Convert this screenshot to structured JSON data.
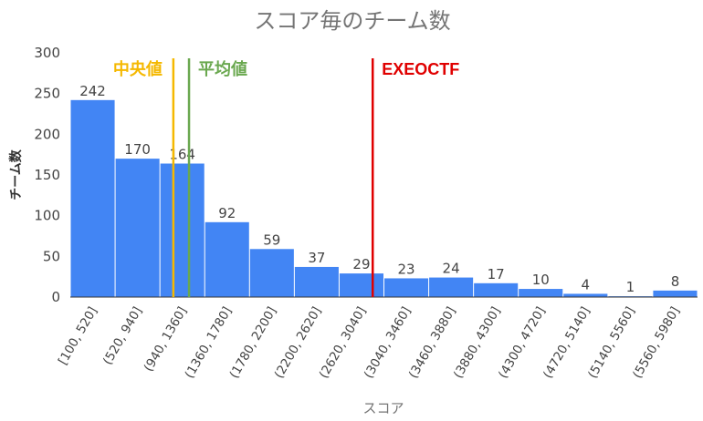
{
  "chart_data": {
    "type": "bar",
    "title": "スコア毎のチーム数",
    "xlabel": "スコア",
    "ylabel": "チーム数",
    "ylim": [
      0,
      300
    ],
    "yticks": [
      0,
      50,
      100,
      150,
      200,
      250,
      300
    ],
    "categories": [
      "[100, 520]",
      "(520, 940]",
      "(940, 1360]",
      "(1360, 1780]",
      "(1780, 2200]",
      "(2200, 2620]",
      "(2620, 3040]",
      "(3040, 3460]",
      "(3460, 3880]",
      "(3880, 4300]",
      "(4300, 4720]",
      "(4720, 5140]",
      "(5140, 5560]",
      "(5560, 5980]"
    ],
    "values": [
      242,
      170,
      164,
      92,
      59,
      37,
      29,
      23,
      24,
      17,
      10,
      4,
      1,
      8
    ],
    "bar_color": "#4285f4",
    "grid": false,
    "annotations": [
      {
        "label": "中央値",
        "x_index": 2.3,
        "color": "#f5b800"
      },
      {
        "label": "平均値",
        "x_index": 2.65,
        "color": "#6aa84f"
      },
      {
        "label": "EXEOCTF",
        "x_index": 6.75,
        "color": "#e00000"
      }
    ]
  }
}
